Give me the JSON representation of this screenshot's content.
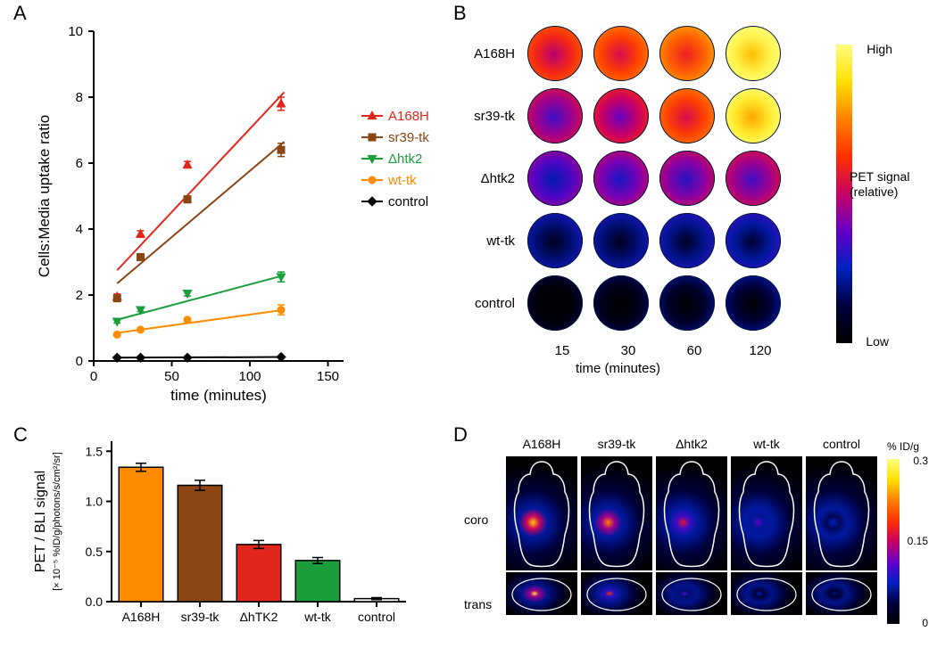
{
  "panelA": {
    "label": "A",
    "type": "line-scatter",
    "xlabel": "time (minutes)",
    "ylabel": "Cells:Media uptake ratio",
    "xlim": [
      0,
      160
    ],
    "xticks": [
      0,
      50,
      100,
      150
    ],
    "ylim": [
      0,
      10
    ],
    "yticks": [
      0,
      2,
      4,
      6,
      8,
      10
    ],
    "axis_fontsize": 17,
    "tick_fontsize": 15,
    "line_width": 2,
    "marker_size": 8,
    "axis_color": "#000000",
    "background": "#ffffff",
    "series": [
      {
        "name": "A168H",
        "color": "#e1261c",
        "marker": "triangle",
        "x": [
          15,
          30,
          60,
          120
        ],
        "y": [
          1.95,
          3.85,
          5.95,
          7.8
        ],
        "yerr": [
          0.08,
          0.1,
          0.1,
          0.2
        ],
        "fit": {
          "x0": 15,
          "y0": 2.75,
          "x1": 122,
          "y1": 8.15
        }
      },
      {
        "name": "sr39-tk",
        "color": "#8b4513",
        "marker": "square",
        "x": [
          15,
          30,
          60,
          120
        ],
        "y": [
          1.9,
          3.15,
          4.9,
          6.4
        ],
        "yerr": [
          0.08,
          0.08,
          0.1,
          0.2
        ],
        "fit": {
          "x0": 15,
          "y0": 2.35,
          "x1": 122,
          "y1": 6.65
        }
      },
      {
        "name": "Δhtk2",
        "color": "#1a9e3b",
        "marker": "triangle-down",
        "x": [
          15,
          30,
          60,
          120
        ],
        "y": [
          1.2,
          1.55,
          2.05,
          2.55
        ],
        "yerr": [
          0.05,
          0.05,
          0.08,
          0.15
        ],
        "fit": {
          "x0": 15,
          "y0": 1.25,
          "x1": 122,
          "y1": 2.6
        }
      },
      {
        "name": "wt-tk",
        "color": "#ff8c00",
        "marker": "circle",
        "x": [
          15,
          30,
          60,
          120
        ],
        "y": [
          0.8,
          0.95,
          1.25,
          1.55
        ],
        "yerr": [
          0.05,
          0.05,
          0.05,
          0.15
        ],
        "fit": {
          "x0": 15,
          "y0": 0.85,
          "x1": 122,
          "y1": 1.55
        }
      },
      {
        "name": "control",
        "color": "#000000",
        "marker": "diamond",
        "x": [
          15,
          30,
          60,
          120
        ],
        "y": [
          0.1,
          0.1,
          0.1,
          0.12
        ],
        "yerr": [
          0.0,
          0.0,
          0.0,
          0.0
        ],
        "fit": {
          "x0": 15,
          "y0": 0.1,
          "x1": 122,
          "y1": 0.12
        }
      }
    ],
    "legend_pos": "right"
  },
  "panelB": {
    "label": "B",
    "type": "heatmap-grid",
    "rows": [
      "A168H",
      "sr39-tk",
      "Δhtk2",
      "wt-tk",
      "control"
    ],
    "time_label": "time (minutes)",
    "times": [
      15,
      30,
      60,
      120
    ],
    "colorbar": {
      "label": "PET signal (relative)",
      "high": "High",
      "low": "Low",
      "stops": [
        "#000000",
        "#00003c",
        "#0020c0",
        "#6400c8",
        "#c80064",
        "#ff3000",
        "#ff8000",
        "#ffe000",
        "#ffff80"
      ]
    },
    "intensity": [
      [
        0.6,
        0.65,
        0.7,
        0.95
      ],
      [
        0.45,
        0.5,
        0.65,
        0.92
      ],
      [
        0.35,
        0.4,
        0.42,
        0.45
      ],
      [
        0.18,
        0.18,
        0.2,
        0.22
      ],
      [
        0.02,
        0.05,
        0.09,
        0.12
      ]
    ]
  },
  "panelC": {
    "label": "C",
    "type": "bar",
    "ylabel_line1": "PET / BLI signal",
    "ylabel_line2": "[× 10⁻⁵ %ID/g/photons/s/cm²/sr]",
    "ylim": [
      0,
      1.6
    ],
    "yticks": [
      0.0,
      0.5,
      1.0,
      1.5
    ],
    "axis_fontsize": 16,
    "tick_fontsize": 14,
    "categories": [
      "A168H",
      "sr39-tk",
      "ΔhTK2",
      "wt-tk",
      "control"
    ],
    "values": [
      1.34,
      1.16,
      0.57,
      0.41,
      0.03
    ],
    "errors": [
      0.04,
      0.05,
      0.04,
      0.03,
      0.01
    ],
    "colors": [
      "#ff8c00",
      "#8b4513",
      "#e1261c",
      "#1a9e3b",
      "#ffffff"
    ],
    "border_color": "#000000",
    "bar_width": 0.75
  },
  "panelD": {
    "label": "D",
    "type": "pet-images",
    "row_labels": [
      "coro",
      "trans"
    ],
    "columns": [
      "A168H",
      "sr39-tk",
      "Δhtk2",
      "wt-tk",
      "control"
    ],
    "colorbar": {
      "label": "% ID/g",
      "ticks": [
        0.0,
        0.15,
        0.3
      ],
      "stops": [
        "#000000",
        "#00003c",
        "#0020c0",
        "#6400c8",
        "#c80064",
        "#ff3000",
        "#ff8000",
        "#ffe000",
        "#ffff80"
      ]
    },
    "coro_hotspot": [
      0.85,
      0.75,
      0.55,
      0.35,
      0.25
    ],
    "trans_hotspot": [
      0.9,
      0.6,
      0.35,
      0.25,
      0.2
    ],
    "outline_color": "#ffffff",
    "background": "#000000"
  }
}
